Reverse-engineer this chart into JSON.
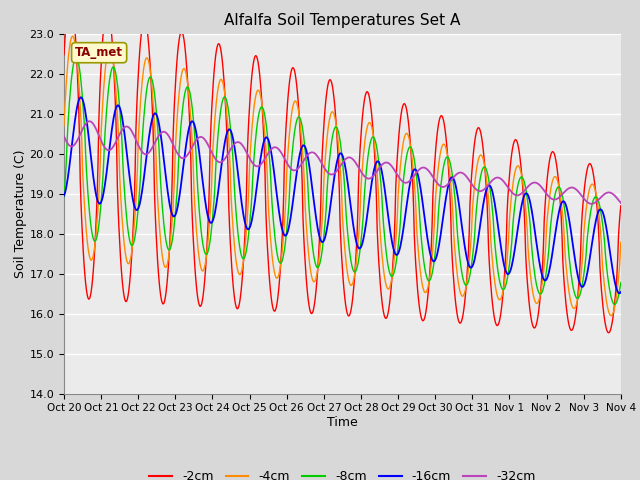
{
  "title": "Alfalfa Soil Temperatures Set A",
  "xlabel": "Time",
  "ylabel": "Soil Temperature (C)",
  "ylim": [
    14.0,
    23.0
  ],
  "yticks": [
    14.0,
    15.0,
    16.0,
    17.0,
    18.0,
    19.0,
    20.0,
    21.0,
    22.0,
    23.0
  ],
  "x_labels": [
    "Oct 20",
    "Oct 21",
    "Oct 22",
    "Oct 23",
    "Oct 24",
    "Oct 25",
    "Oct 26",
    "Oct 27",
    "Oct 28",
    "Oct 29",
    "Oct 30",
    "Oct 31",
    "Nov 1",
    "Nov 2",
    "Nov 3",
    "Nov 4"
  ],
  "annotation_text": "TA_met",
  "colors": {
    "2cm": "#FF0000",
    "4cm": "#FF8C00",
    "8cm": "#00CC00",
    "16cm": "#0000FF",
    "32cm": "#BB44BB"
  },
  "legend_labels": [
    "-2cm",
    "-4cm",
    "-8cm",
    "-16cm",
    "-32cm"
  ],
  "fig_bg_color": "#D8D8D8",
  "plot_bg_color": "#EBEBEB"
}
